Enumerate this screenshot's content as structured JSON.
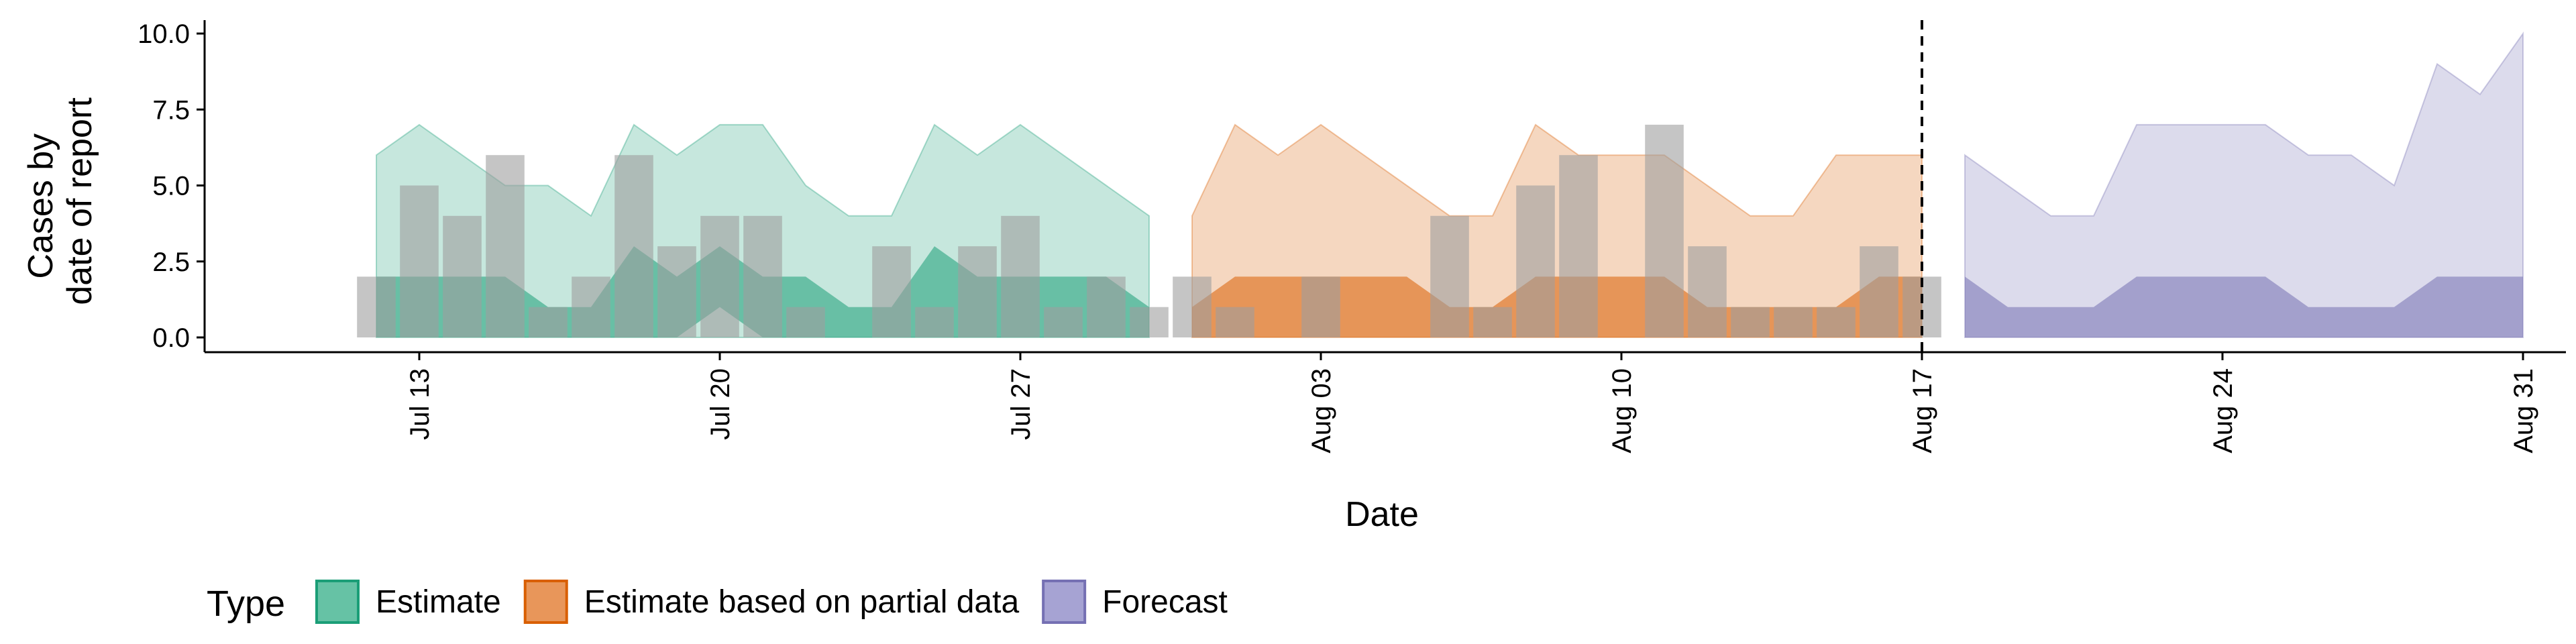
{
  "chart_data": {
    "type": "area",
    "xlabel": "Date",
    "ylabel_lines": [
      "Cases by",
      "date of report"
    ],
    "ylim": [
      0,
      10
    ],
    "y_ticks": [
      "0.0",
      "2.5",
      "5.0",
      "7.5",
      "10.0"
    ],
    "x_range": [
      "2020-07-08",
      "2020-09-01"
    ],
    "x_ticks": [
      {
        "date": "2020-07-13",
        "label": "Jul 13"
      },
      {
        "date": "2020-07-20",
        "label": "Jul 20"
      },
      {
        "date": "2020-07-27",
        "label": "Jul 27"
      },
      {
        "date": "2020-08-03",
        "label": "Aug 03"
      },
      {
        "date": "2020-08-10",
        "label": "Aug 10"
      },
      {
        "date": "2020-08-17",
        "label": "Aug 17"
      },
      {
        "date": "2020-08-24",
        "label": "Aug 24"
      },
      {
        "date": "2020-08-31",
        "label": "Aug 31"
      }
    ],
    "cutoff_date": "2020-08-17",
    "legend": {
      "title": "Type",
      "position": "bottom",
      "entries": [
        {
          "label": "Estimate",
          "fill": "#66c2a5",
          "stroke": "#1b9e77"
        },
        {
          "label": "Estimate based on partial data",
          "fill": "#e8965a",
          "stroke": "#d95f02"
        },
        {
          "label": "Forecast",
          "fill": "#a6a3d3",
          "stroke": "#7570b3"
        }
      ]
    },
    "observed_cases": {
      "color": "#9e9e9e",
      "points": [
        {
          "date": "2020-07-12",
          "value": 2
        },
        {
          "date": "2020-07-13",
          "value": 5
        },
        {
          "date": "2020-07-14",
          "value": 4
        },
        {
          "date": "2020-07-15",
          "value": 6
        },
        {
          "date": "2020-07-16",
          "value": 1
        },
        {
          "date": "2020-07-17",
          "value": 2
        },
        {
          "date": "2020-07-18",
          "value": 6
        },
        {
          "date": "2020-07-19",
          "value": 3
        },
        {
          "date": "2020-07-20",
          "value": 4
        },
        {
          "date": "2020-07-21",
          "value": 4
        },
        {
          "date": "2020-07-22",
          "value": 1
        },
        {
          "date": "2020-07-24",
          "value": 3
        },
        {
          "date": "2020-07-25",
          "value": 1
        },
        {
          "date": "2020-07-26",
          "value": 3
        },
        {
          "date": "2020-07-27",
          "value": 4
        },
        {
          "date": "2020-07-28",
          "value": 1
        },
        {
          "date": "2020-07-29",
          "value": 2
        },
        {
          "date": "2020-07-30",
          "value": 1
        },
        {
          "date": "2020-07-31",
          "value": 2
        },
        {
          "date": "2020-08-01",
          "value": 1
        },
        {
          "date": "2020-08-03",
          "value": 2
        },
        {
          "date": "2020-08-06",
          "value": 4
        },
        {
          "date": "2020-08-07",
          "value": 1
        },
        {
          "date": "2020-08-08",
          "value": 5
        },
        {
          "date": "2020-08-09",
          "value": 6
        },
        {
          "date": "2020-08-11",
          "value": 7
        },
        {
          "date": "2020-08-12",
          "value": 3
        },
        {
          "date": "2020-08-13",
          "value": 1
        },
        {
          "date": "2020-08-14",
          "value": 1
        },
        {
          "date": "2020-08-15",
          "value": 1
        },
        {
          "date": "2020-08-16",
          "value": 3
        },
        {
          "date": "2020-08-17",
          "value": 2
        }
      ]
    },
    "series": [
      {
        "name": "Estimate",
        "fill": "#1b9e77",
        "dates": [
          "2020-07-12",
          "2020-07-13",
          "2020-07-14",
          "2020-07-15",
          "2020-07-16",
          "2020-07-17",
          "2020-07-18",
          "2020-07-19",
          "2020-07-20",
          "2020-07-21",
          "2020-07-22",
          "2020-07-23",
          "2020-07-24",
          "2020-07-25",
          "2020-07-26",
          "2020-07-27",
          "2020-07-28",
          "2020-07-29",
          "2020-07-30"
        ],
        "outer_lower": [
          0,
          0,
          0,
          0,
          0,
          0,
          0,
          0,
          0,
          0,
          0,
          0,
          0,
          0,
          0,
          0,
          0,
          0,
          0
        ],
        "outer_upper": [
          6,
          7,
          6,
          5,
          5,
          4,
          7,
          6,
          7,
          7,
          5,
          4,
          4,
          7,
          6,
          7,
          6,
          5,
          4
        ],
        "inner_lower": [
          0,
          0,
          0,
          0,
          0,
          0,
          0,
          0,
          1,
          0,
          0,
          0,
          0,
          0,
          0,
          0,
          0,
          0,
          0
        ],
        "inner_upper": [
          2,
          2,
          2,
          2,
          1,
          1,
          3,
          2,
          3,
          2,
          2,
          1,
          1,
          3,
          2,
          2,
          2,
          2,
          1
        ]
      },
      {
        "name": "Estimate based on partial data",
        "fill": "#d95f02",
        "dates": [
          "2020-07-31",
          "2020-08-01",
          "2020-08-02",
          "2020-08-03",
          "2020-08-04",
          "2020-08-05",
          "2020-08-06",
          "2020-08-07",
          "2020-08-08",
          "2020-08-09",
          "2020-08-10",
          "2020-08-11",
          "2020-08-12",
          "2020-08-13",
          "2020-08-14",
          "2020-08-15",
          "2020-08-16",
          "2020-08-17"
        ],
        "outer_lower": [
          0,
          0,
          0,
          0,
          0,
          0,
          0,
          0,
          0,
          0,
          0,
          0,
          0,
          0,
          0,
          0,
          0,
          0
        ],
        "outer_upper": [
          4,
          7,
          6,
          7,
          6,
          5,
          4,
          4,
          7,
          6,
          6,
          6,
          5,
          4,
          4,
          6,
          6,
          6
        ],
        "inner_lower": [
          0,
          0,
          0,
          0,
          0,
          0,
          0,
          0,
          0,
          0,
          0,
          0,
          0,
          0,
          0,
          0,
          0,
          0
        ],
        "inner_upper": [
          1,
          2,
          2,
          2,
          2,
          2,
          1,
          1,
          2,
          2,
          2,
          2,
          1,
          1,
          1,
          1,
          2,
          2
        ]
      },
      {
        "name": "Forecast",
        "fill": "#7570b3",
        "dates": [
          "2020-08-18",
          "2020-08-19",
          "2020-08-20",
          "2020-08-21",
          "2020-08-22",
          "2020-08-23",
          "2020-08-24",
          "2020-08-25",
          "2020-08-26",
          "2020-08-27",
          "2020-08-28",
          "2020-08-29",
          "2020-08-30",
          "2020-08-31"
        ],
        "outer_lower": [
          0,
          0,
          0,
          0,
          0,
          0,
          0,
          0,
          0,
          0,
          0,
          0,
          0,
          0
        ],
        "outer_upper": [
          6,
          5,
          4,
          4,
          7,
          7,
          7,
          7,
          6,
          6,
          5,
          9,
          8,
          10
        ],
        "inner_lower": [
          0,
          0,
          0,
          0,
          0,
          0,
          0,
          0,
          0,
          0,
          0,
          0,
          0,
          0
        ],
        "inner_upper": [
          2,
          1,
          1,
          1,
          2,
          2,
          2,
          2,
          1,
          1,
          1,
          2,
          2,
          2
        ]
      }
    ]
  }
}
